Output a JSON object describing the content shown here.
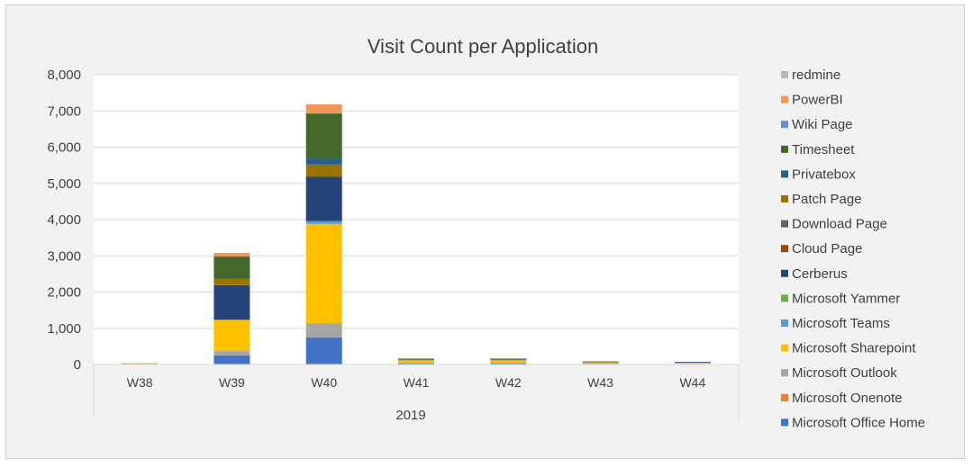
{
  "chart_data": {
    "type": "bar",
    "stacked": true,
    "title": "Visit Count per Application",
    "xlabel": "",
    "ylabel": "",
    "group_label": "2019",
    "categories": [
      "W38",
      "W39",
      "W40",
      "W41",
      "W42",
      "W43",
      "W44"
    ],
    "ylim": [
      0,
      8000
    ],
    "yticks": [
      0,
      1000,
      2000,
      3000,
      4000,
      5000,
      6000,
      7000,
      8000
    ],
    "ytick_labels": [
      "0",
      "1,000",
      "2,000",
      "3,000",
      "4,000",
      "5,000",
      "6,000",
      "7,000",
      "8,000"
    ],
    "grid": true,
    "legend_position": "right",
    "series": [
      {
        "name": "Microsoft Office Home",
        "color": "#4472c4",
        "values": [
          10,
          250,
          750,
          30,
          30,
          15,
          10
        ]
      },
      {
        "name": "Microsoft Onenote",
        "color": "#ed7d31",
        "values": [
          0,
          0,
          0,
          0,
          0,
          0,
          0
        ]
      },
      {
        "name": "Microsoft Outlook",
        "color": "#a5a5a5",
        "values": [
          20,
          120,
          380,
          20,
          20,
          10,
          10
        ]
      },
      {
        "name": "Microsoft Sharepoint",
        "color": "#ffc000",
        "values": [
          5,
          850,
          2750,
          80,
          80,
          50,
          40
        ]
      },
      {
        "name": "Microsoft Teams",
        "color": "#5b9bd5",
        "values": [
          0,
          20,
          80,
          5,
          5,
          0,
          0
        ]
      },
      {
        "name": "Microsoft Yammer",
        "color": "#70ad47",
        "values": [
          0,
          0,
          0,
          0,
          0,
          0,
          0
        ]
      },
      {
        "name": "Cerberus",
        "color": "#264478",
        "values": [
          0,
          950,
          1220,
          20,
          20,
          10,
          10
        ]
      },
      {
        "name": "Cloud Page",
        "color": "#9e480e",
        "values": [
          0,
          0,
          0,
          0,
          0,
          0,
          0
        ]
      },
      {
        "name": "Download Page",
        "color": "#636363",
        "values": [
          0,
          0,
          0,
          0,
          0,
          0,
          0
        ]
      },
      {
        "name": "Patch Page",
        "color": "#997300",
        "values": [
          0,
          170,
          340,
          5,
          5,
          0,
          0
        ]
      },
      {
        "name": "Privatebox",
        "color": "#255e91",
        "values": [
          0,
          20,
          160,
          0,
          0,
          0,
          0
        ]
      },
      {
        "name": "Timesheet",
        "color": "#43682b",
        "values": [
          0,
          600,
          1250,
          5,
          5,
          0,
          0
        ]
      },
      {
        "name": "Wiki Page",
        "color": "#698ed0",
        "values": [
          0,
          0,
          0,
          0,
          0,
          0,
          0
        ]
      },
      {
        "name": "PowerBI",
        "color": "#f1975a",
        "values": [
          0,
          100,
          250,
          0,
          0,
          0,
          0
        ]
      },
      {
        "name": "redmine",
        "color": "#b7b7b7",
        "values": [
          5,
          0,
          0,
          0,
          0,
          0,
          0
        ]
      }
    ]
  }
}
